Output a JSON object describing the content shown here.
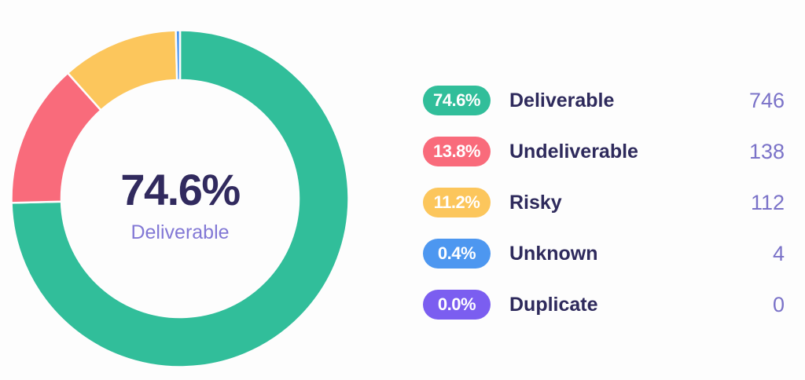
{
  "colors": {
    "background": "#FDFDFD",
    "value_text": "#312A5E",
    "subtitle_text": "#8278D5",
    "label_text": "#2E2A5C",
    "count_text": "#7A72C8",
    "pill_text": "#FFFFFF"
  },
  "chart_data": {
    "type": "donut",
    "direction": "clockwise",
    "start_angle_deg": 0,
    "inner_radius_ratio": 0.7,
    "legend_position": "right",
    "center": {
      "value": "74.6%",
      "label": "Deliverable"
    },
    "segments": [
      {
        "label": "Deliverable",
        "badge": "74.6%",
        "percent": 74.6,
        "count": 746,
        "color": "#31BE9A"
      },
      {
        "label": "Undeliverable",
        "badge": "13.8%",
        "percent": 13.8,
        "count": 138,
        "color": "#F96B7B"
      },
      {
        "label": "Risky",
        "badge": "11.2%",
        "percent": 11.2,
        "count": 112,
        "color": "#FCC65C"
      },
      {
        "label": "Unknown",
        "badge": "0.4%",
        "percent": 0.4,
        "count": 4,
        "color": "#4D97F0"
      },
      {
        "label": "Duplicate",
        "badge": "0.0%",
        "percent": 0.0,
        "count": 0,
        "color": "#7B5EF0"
      }
    ]
  }
}
